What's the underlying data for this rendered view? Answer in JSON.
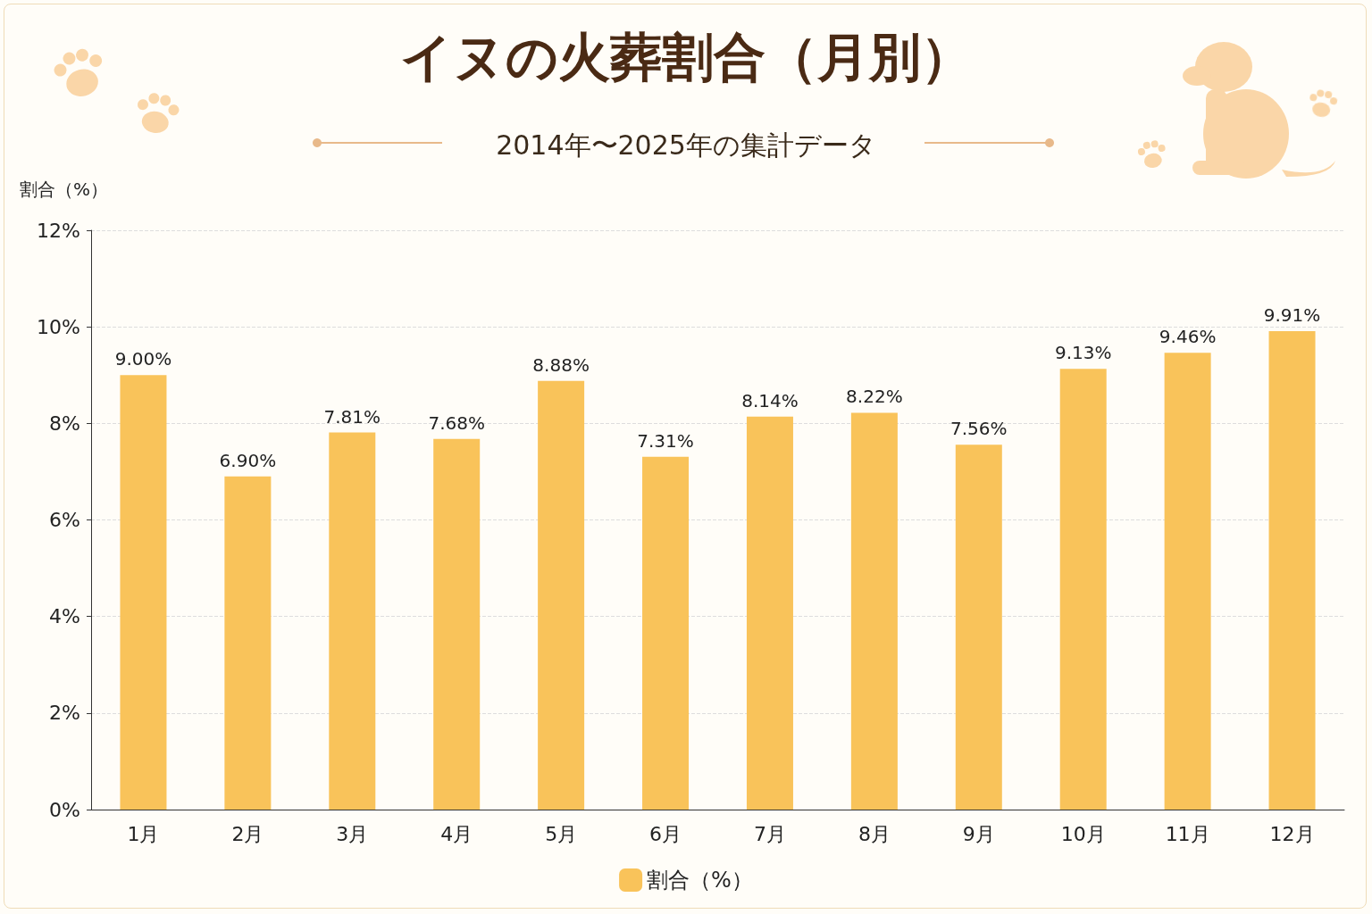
{
  "chart_data": {
    "type": "bar",
    "title": "イヌの火葬割合（月別）",
    "subtitle": "2014年〜2025年の集計データ",
    "ylabel": "割合（%）",
    "categories": [
      "1月",
      "2月",
      "3月",
      "4月",
      "5月",
      "6月",
      "7月",
      "8月",
      "9月",
      "10月",
      "11月",
      "12月"
    ],
    "series": [
      {
        "name": "割合（%）",
        "color": "#f9c35a",
        "values": [
          9.0,
          6.9,
          7.81,
          7.68,
          8.88,
          7.31,
          8.14,
          8.22,
          7.56,
          9.13,
          9.46,
          9.91
        ],
        "value_labels": [
          "9.00%",
          "6.90%",
          "7.81%",
          "7.68%",
          "8.88%",
          "7.31%",
          "8.14%",
          "8.22%",
          "7.56%",
          "9.13%",
          "9.46%",
          "9.91%"
        ]
      }
    ],
    "ylim": [
      0,
      12
    ],
    "yticks": [
      {
        "value": 0,
        "label": "0%"
      },
      {
        "value": 2,
        "label": "2%"
      },
      {
        "value": 4,
        "label": "4%"
      },
      {
        "value": 6,
        "label": "6%"
      },
      {
        "value": 8,
        "label": "8%"
      },
      {
        "value": 10,
        "label": "10%"
      },
      {
        "value": 12,
        "label": "12%"
      }
    ],
    "grid": true,
    "data_labels": true,
    "legend": "bottom"
  }
}
